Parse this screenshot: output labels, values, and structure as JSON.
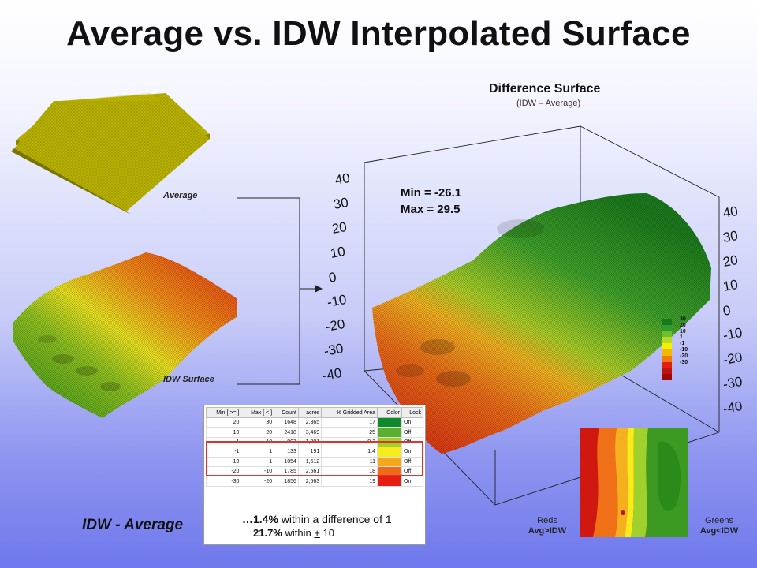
{
  "title": "Average vs. IDW Interpolated Surface",
  "difference_surface": {
    "title": "Difference Surface",
    "subtitle": "(IDW – Average)",
    "min_text": "Min = -26.1",
    "max_text": "Max = 29.5",
    "axis_ticks_left": [
      "40",
      "30",
      "20",
      "10",
      "0",
      "-10",
      "-20",
      "-30",
      "-40"
    ],
    "axis_ticks_right": [
      "40",
      "30",
      "20",
      "10",
      "0",
      "-10",
      "-20",
      "-30",
      "-40"
    ]
  },
  "labels": {
    "average": "Average",
    "idw_surface": "IDW Surface",
    "idw_minus_average": "IDW - Average",
    "reds_line1": "Reds",
    "reds_line2": "Avg>IDW",
    "greens_line1": "Greens",
    "greens_line2": "Avg<IDW"
  },
  "legend": {
    "values": [
      "30",
      "20",
      "10",
      "1",
      "-1",
      "-10",
      "-20",
      "-30"
    ],
    "colors": [
      "#1a7a1a",
      "#2f9a2f",
      "#6fbf2a",
      "#b6d92a",
      "#f4f000",
      "#f5b800",
      "#f07a10",
      "#e02010",
      "#c01010",
      "#a00808"
    ]
  },
  "table": {
    "headers": [
      "Min [ >= ]",
      "Max [ < ]",
      "Count",
      "acres",
      "% Gridded Area",
      "Color",
      "Lock"
    ],
    "rows": [
      {
        "min": "20",
        "max": "30",
        "count": "1648",
        "acres": "2,365",
        "pct": "17",
        "color": "#0f8a2a",
        "lock": "On"
      },
      {
        "min": "10",
        "max": "20",
        "count": "2418",
        "acres": "3,469",
        "pct": "25",
        "color": "#58b02e",
        "lock": "Off"
      },
      {
        "min": "1",
        "max": "10",
        "count": "907",
        "acres": "1,301",
        "pct": "9.3",
        "color": "#9fd02c",
        "lock": "Off"
      },
      {
        "min": "-1",
        "max": "1",
        "count": "133",
        "acres": "191",
        "pct": "1.4",
        "color": "#f5ec1a",
        "lock": "On"
      },
      {
        "min": "-10",
        "max": "-1",
        "count": "1054",
        "acres": "1,512",
        "pct": "11",
        "color": "#f7a81a",
        "lock": "Off"
      },
      {
        "min": "-20",
        "max": "-10",
        "count": "1785",
        "acres": "2,561",
        "pct": "18",
        "color": "#f06a18",
        "lock": "Off"
      },
      {
        "min": "-30",
        "max": "-20",
        "count": "1856",
        "acres": "2,663",
        "pct": "19",
        "color": "#e41e12",
        "lock": "On"
      }
    ],
    "stat1_value": "…1.4%",
    "stat1_text": " within a difference of 1",
    "stat2_value": "21.7%",
    "stat2_text_pre": " within ",
    "stat2_pm": "+",
    "stat2_text_post": " 10"
  }
}
